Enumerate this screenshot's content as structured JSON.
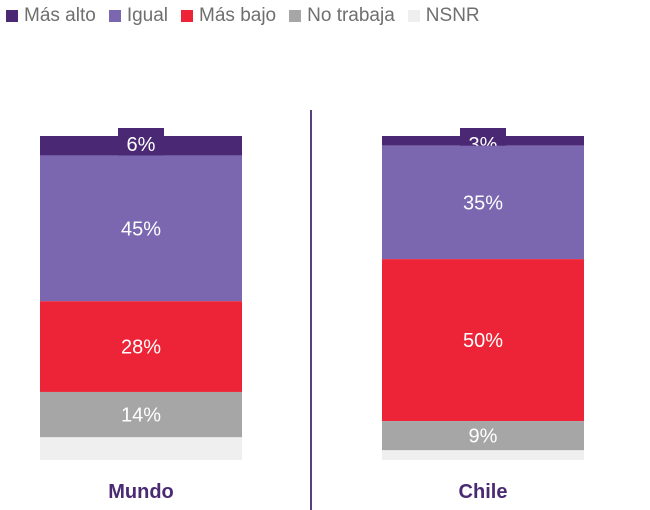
{
  "chart_data": {
    "type": "bar",
    "stacked": true,
    "orientation": "vertical",
    "categories": [
      "Mundo",
      "Chile"
    ],
    "series": [
      {
        "name": "Más alto",
        "color": "#4b2873",
        "values": [
          6,
          3
        ],
        "labels": [
          "6%",
          "3%"
        ]
      },
      {
        "name": "Igual",
        "color": "#7a67b0",
        "values": [
          45,
          35
        ],
        "labels": [
          "45%",
          "35%"
        ]
      },
      {
        "name": "Más bajo",
        "color": "#ed2437",
        "values": [
          28,
          50
        ],
        "labels": [
          "28%",
          "50%"
        ]
      },
      {
        "name": "No trabaja",
        "color": "#a6a6a6",
        "values": [
          14,
          9
        ],
        "labels": [
          "14%",
          "9%"
        ]
      },
      {
        "name": "NSNR",
        "color": "#efefef",
        "values": [
          7,
          3
        ],
        "labels": [
          "",
          ""
        ]
      }
    ],
    "total": 100,
    "legend_position": "top",
    "divider_color": "#5b3d80"
  }
}
